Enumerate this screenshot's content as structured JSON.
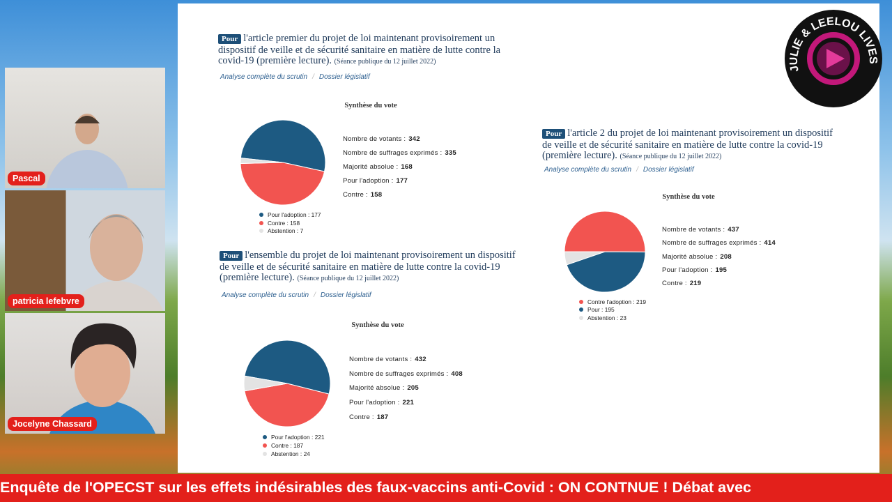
{
  "participants": [
    {
      "name": "Pascal"
    },
    {
      "name": "patricia lefebvre"
    },
    {
      "name": "Jocelyne Chassard"
    }
  ],
  "logo": "JULIE & LEELOU LIVES",
  "ticker": "Enquête de l'OPECST sur les effets indésirables des faux-vaccins anti-Covid : ON CONTNUE ! Débat avec",
  "votes": [
    {
      "badge": "Pour",
      "title": "l'article premier du projet de loi maintenant provisoirement un dispositif de veille et de sécurité sanitaire en matière de lutte contre la covid-19 (première lecture).",
      "session": "(Séance publique du 12 juillet 2022)",
      "links": [
        "Analyse complète du scrutin",
        "Dossier législatif"
      ],
      "synthesis": "Synthèse du vote",
      "stats": [
        {
          "label": "Nombre de votants :",
          "value": 342
        },
        {
          "label": "Nombre de suffrages exprimés :",
          "value": 335
        },
        {
          "label": "Majorité absolue :",
          "value": 168
        },
        {
          "label": "Pour l'adoption :",
          "value": 177
        },
        {
          "label": "Contre :",
          "value": 158
        }
      ],
      "legend": [
        {
          "label": "Pour l'adoption :",
          "value": 177,
          "color": "#1d5a82"
        },
        {
          "label": "Contre :",
          "value": 158,
          "color": "#f25450"
        },
        {
          "label": "Abstention :",
          "value": 7,
          "color": "#e3e3e3"
        }
      ]
    },
    {
      "badge": "Pour",
      "title": "l'article 2 du projet de loi maintenant provisoirement un dispositif de veille et de sécurité sanitaire en matière de lutte contre la covid-19 (première lecture).",
      "session": "(Séance publique du 12 juillet 2022)",
      "links": [
        "Analyse complète du scrutin",
        "Dossier législatif"
      ],
      "synthesis": "Synthèse du vote",
      "stats": [
        {
          "label": "Nombre de votants :",
          "value": 437
        },
        {
          "label": "Nombre de suffrages exprimés :",
          "value": 414
        },
        {
          "label": "Majorité absolue :",
          "value": 208
        },
        {
          "label": "Pour l'adoption :",
          "value": 195
        },
        {
          "label": "Contre :",
          "value": 219
        }
      ],
      "legend": [
        {
          "label": "Contre l'adoption :",
          "value": 219,
          "color": "#f25450"
        },
        {
          "label": "Pour :",
          "value": 195,
          "color": "#1d5a82"
        },
        {
          "label": "Abstention :",
          "value": 23,
          "color": "#e3e3e3"
        }
      ]
    },
    {
      "badge": "Pour",
      "title": "l'ensemble du projet de loi maintenant provisoirement un dispositif de veille et de sécurité sanitaire en matière de lutte contre la covid-19 (première lecture).",
      "session": "(Séance publique du 12 juillet 2022)",
      "links": [
        "Analyse complète du scrutin",
        "Dossier législatif"
      ],
      "synthesis": "Synthèse du vote",
      "stats": [
        {
          "label": "Nombre de votants :",
          "value": 432
        },
        {
          "label": "Nombre de suffrages exprimés :",
          "value": 408
        },
        {
          "label": "Majorité absolue :",
          "value": 205
        },
        {
          "label": "Pour l'adoption :",
          "value": 221
        },
        {
          "label": "Contre :",
          "value": 187
        }
      ],
      "legend": [
        {
          "label": "Pour l'adoption :",
          "value": 221,
          "color": "#1d5a82"
        },
        {
          "label": "Contre :",
          "value": 187,
          "color": "#f25450"
        },
        {
          "label": "Abstention :",
          "value": 24,
          "color": "#e3e3e3"
        }
      ]
    }
  ]
}
